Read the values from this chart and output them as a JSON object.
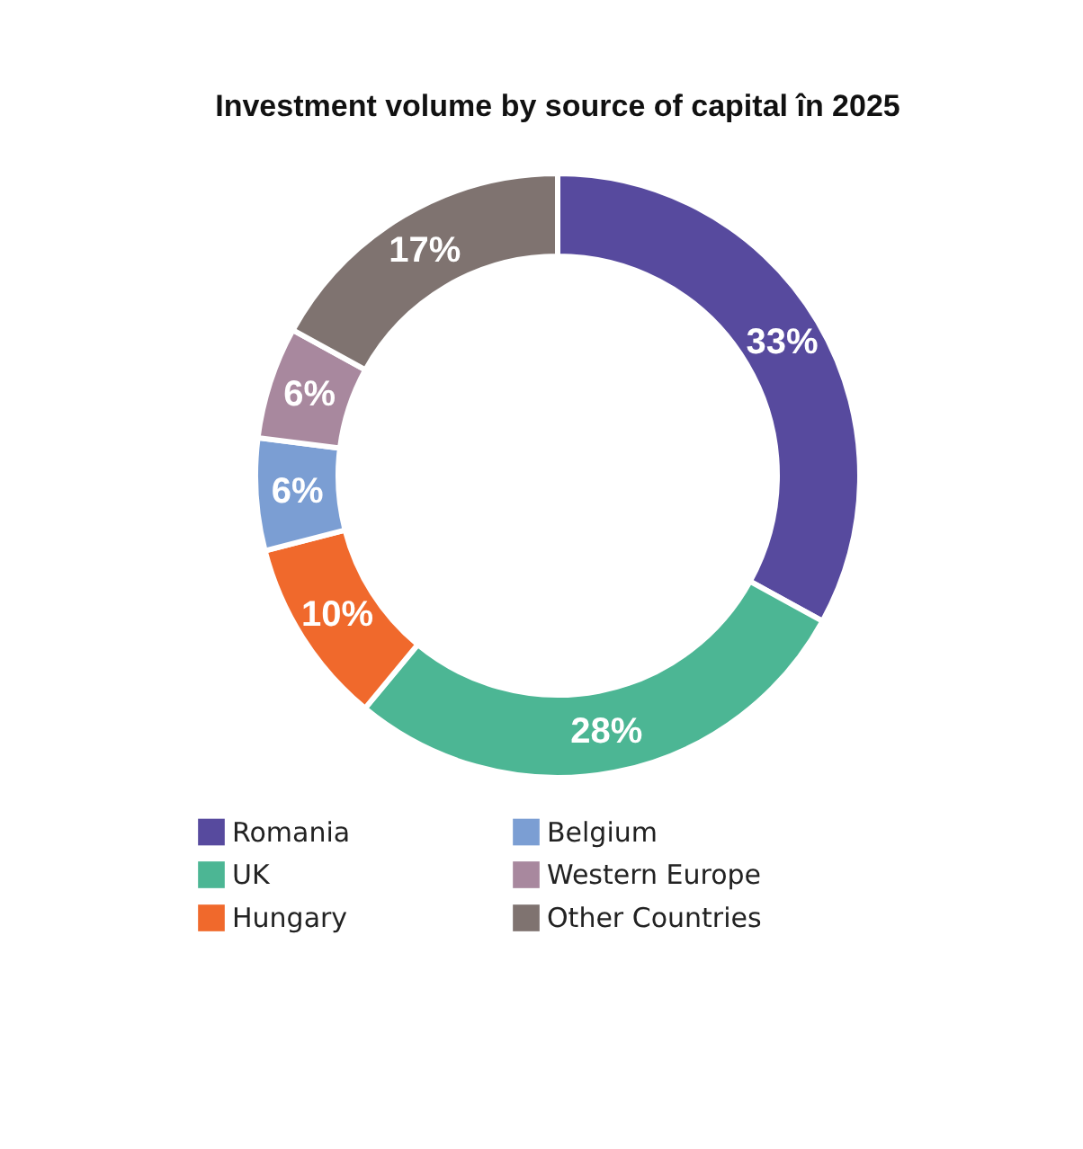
{
  "chart_data": {
    "type": "donut",
    "title": "Investment volume by source of capital în 2025",
    "categories": [
      "Romania",
      "UK",
      "Hungary",
      "Belgium",
      "Western Europe",
      "Other Countries"
    ],
    "values": [
      33,
      28,
      10,
      6,
      6,
      17
    ],
    "colors": [
      "#574a9e",
      "#4cb694",
      "#f0692c",
      "#7b9ed3",
      "#a8889e",
      "#7f7370"
    ],
    "value_labels": [
      "33%",
      "28%",
      "10%",
      "6%",
      "6%",
      "17%"
    ],
    "legend": "bottom"
  }
}
